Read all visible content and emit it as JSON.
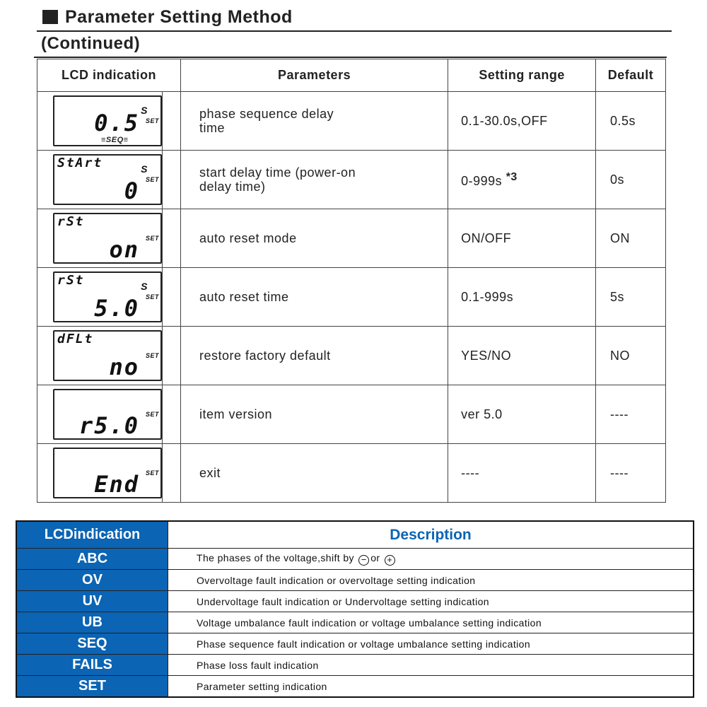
{
  "title": "Parameter Setting Method",
  "subtitle": "(Continued)",
  "table1": {
    "headers": [
      "LCD indication",
      "Parameters",
      "Setting range",
      "Default"
    ],
    "rows": [
      {
        "lcd_top": "",
        "lcd_main": "0.5",
        "lcd_unit": "S",
        "lcd_set": "SET",
        "lcd_extra": "≡SEQ≡",
        "param": "phase sequence delay time",
        "range": "0.1-30.0s,OFF",
        "default": "0.5s"
      },
      {
        "lcd_top": "StArt",
        "lcd_main": "0",
        "lcd_unit": "S",
        "lcd_set": "SET",
        "param": "start delay time (power-on delay time)",
        "range": "0-999s",
        "range_note": "*3",
        "default": "0s"
      },
      {
        "lcd_top": "rSt",
        "lcd_main": "on",
        "lcd_unit": "",
        "lcd_set": "SET",
        "param": "auto reset mode",
        "range": "ON/OFF",
        "default": "ON"
      },
      {
        "lcd_top": "rSt",
        "lcd_main": "5.0",
        "lcd_unit": "S",
        "lcd_set": "SET",
        "param": "auto reset time",
        "range": "0.1-999s",
        "default": "5s"
      },
      {
        "lcd_top": "dFLt",
        "lcd_main": "no",
        "lcd_unit": "",
        "lcd_set": "SET",
        "param": "restore factory default",
        "range": "YES/NO",
        "default": "NO"
      },
      {
        "lcd_top": "",
        "lcd_main": "r5.0",
        "lcd_unit": "",
        "lcd_set": "SET",
        "param": "item version",
        "range": "ver 5.0",
        "default": "----"
      },
      {
        "lcd_top": "",
        "lcd_main": "End",
        "lcd_unit": "",
        "lcd_set": "SET",
        "param": "exit",
        "range": "----",
        "default": "----"
      }
    ]
  },
  "table2": {
    "headers": [
      "LCDindication",
      "Description"
    ],
    "rows": [
      {
        "key": "ABC",
        "desc": "The phases of the voltage,shift by",
        "minus": "−",
        "or": "or",
        "plus": "+"
      },
      {
        "key": "OV",
        "desc": "Overvoltage fault indication or overvoltage setting indication"
      },
      {
        "key": "UV",
        "desc": "Undervoltage fault indication or Undervoltage setting indication"
      },
      {
        "key": "UB",
        "desc": "Voltage umbalance  fault indication or voltage umbalance  setting indication"
      },
      {
        "key": "SEQ",
        "desc": "Phase sequence  fault indication or voltage umbalance setting indication"
      },
      {
        "key": "FAILS",
        "desc": "Phase loss fault indication"
      },
      {
        "key": "SET",
        "desc": "Parameter setting indication"
      }
    ]
  },
  "colors": {
    "header_blue": "#0b64b4"
  }
}
